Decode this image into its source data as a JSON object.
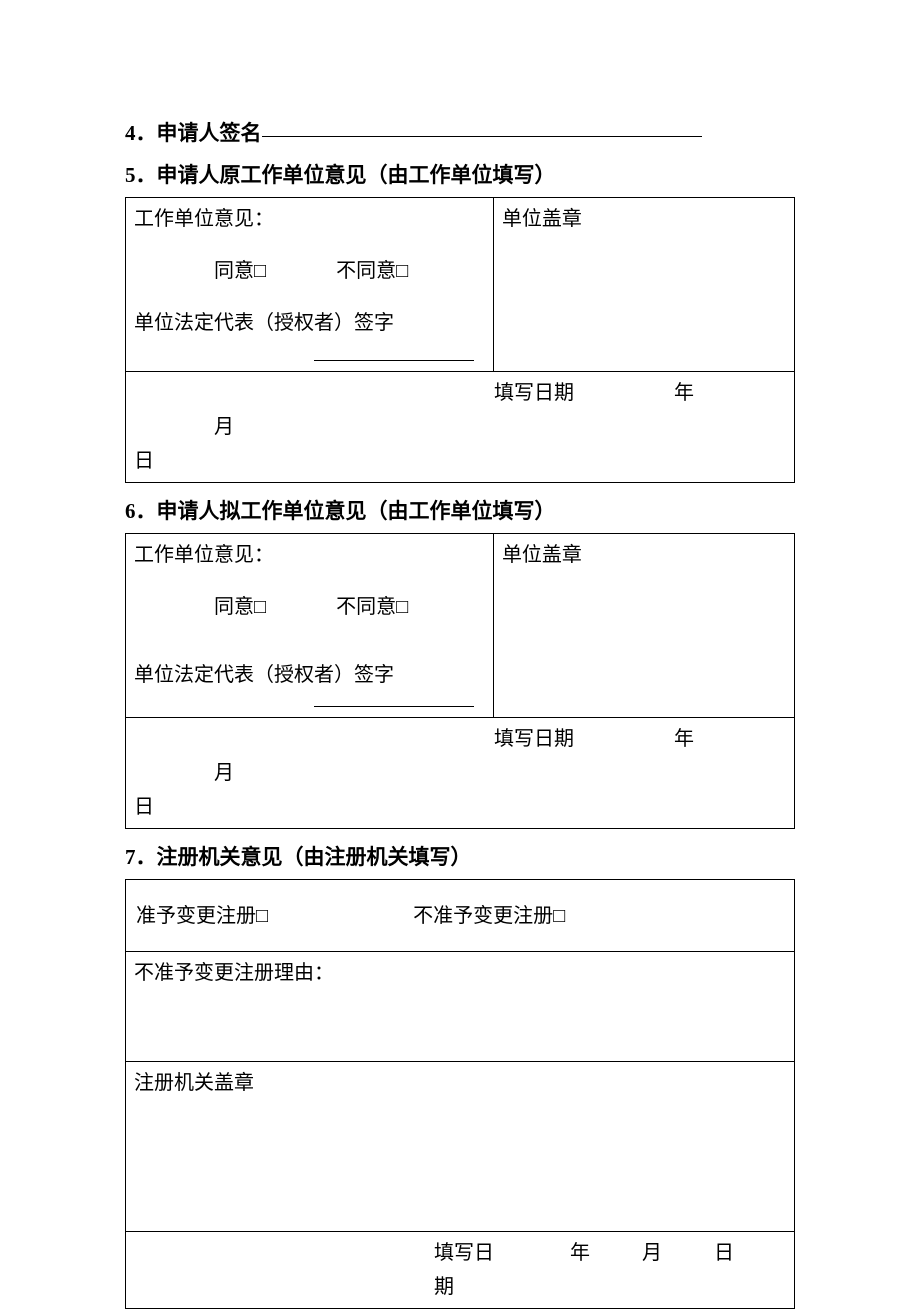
{
  "page": {
    "background_color": "#ffffff",
    "text_color": "#000000",
    "border_color": "#000000",
    "font_family": "SimSun",
    "heading_fontsize": 21,
    "body_fontsize": 20
  },
  "section4": {
    "heading": "4．申请人签名"
  },
  "section5": {
    "heading": "5．申请人原工作单位意见（由工作单位填写）",
    "opinion_label": "工作单位意见：",
    "agree_label": "同意□",
    "disagree_label": "不同意□",
    "representative_label": "单位法定代表（授权者）签字",
    "stamp_label": "单位盖章",
    "date_label": "填写日期",
    "year_label": "年",
    "month_label": "月",
    "day_label": "日"
  },
  "section6": {
    "heading": "6．申请人拟工作单位意见（由工作单位填写）",
    "opinion_label": "工作单位意见：",
    "agree_label": "同意□",
    "disagree_label": "不同意□",
    "representative_label": "单位法定代表（授权者）签字",
    "stamp_label": "单位盖章",
    "date_label": "填写日期",
    "year_label": "年",
    "month_label": "月",
    "day_label": "日"
  },
  "section7": {
    "heading": "7．注册机关意见（由注册机关填写）",
    "approve_label": "准予变更注册□",
    "disapprove_label": "不准予变更注册□",
    "reason_label": "不准予变更注册理由：",
    "authority_stamp_label": "注册机关盖章",
    "date_label": "填写日期",
    "year_label": "年",
    "month_label": "月",
    "day_label": "日"
  }
}
